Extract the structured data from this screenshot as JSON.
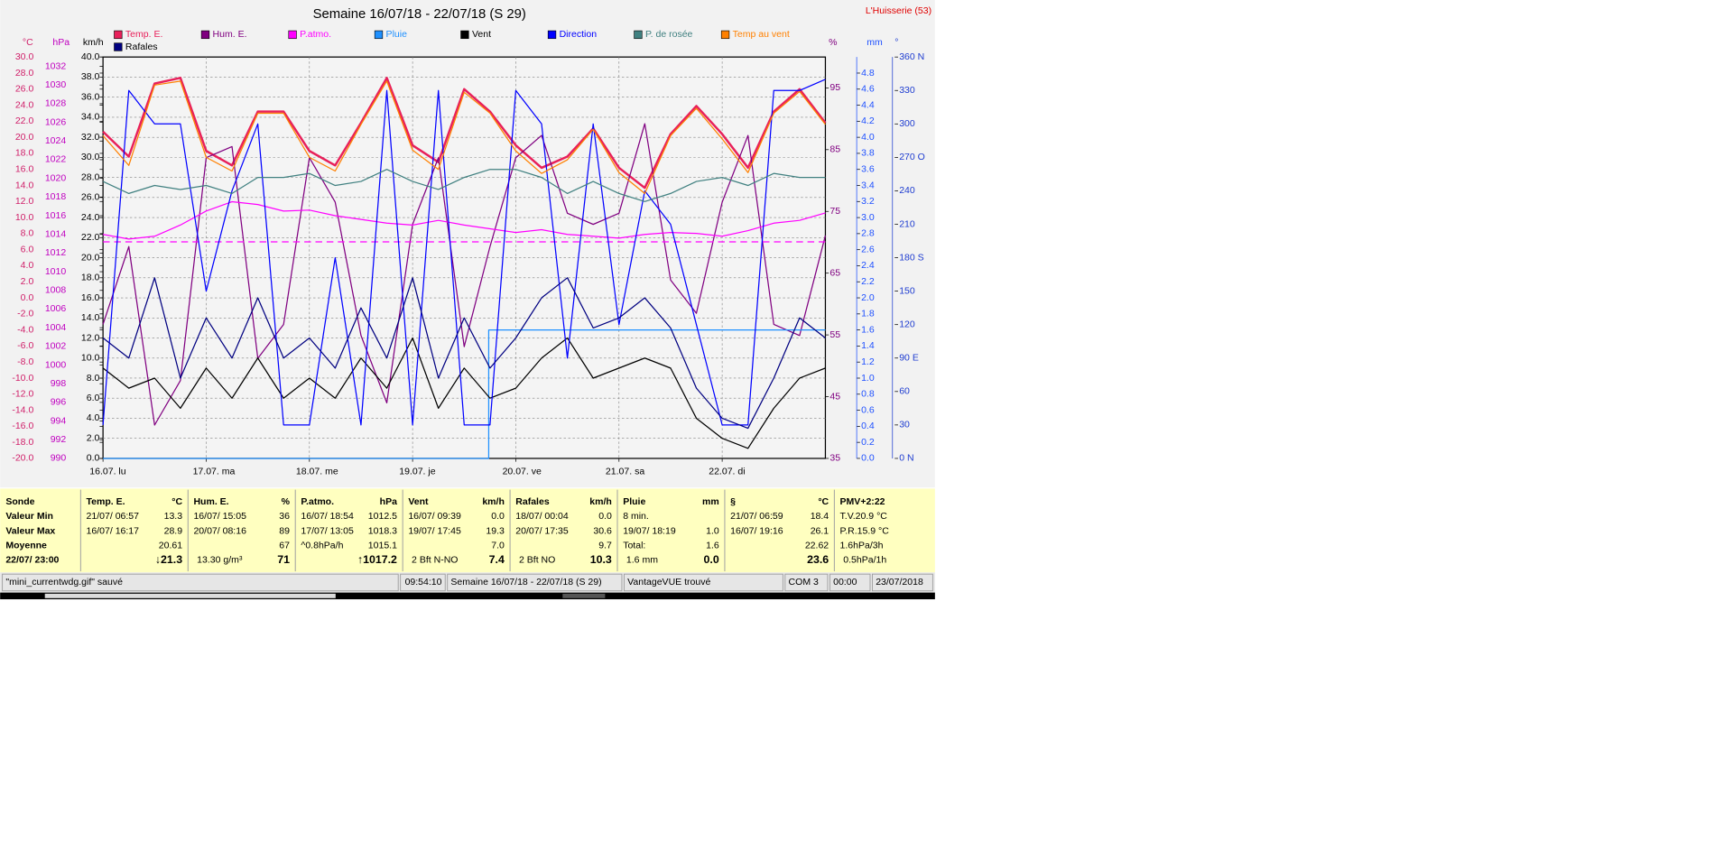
{
  "chart_data": {
    "type": "line",
    "title": "Semaine 16/07/18 - 22/07/18 (S 29)",
    "station": "L'Huisserie (53)",
    "grid": true,
    "x": [
      0,
      6,
      12,
      18,
      24,
      30,
      36,
      42,
      48,
      54,
      60,
      66,
      72,
      78,
      84,
      90,
      96,
      102,
      108,
      114,
      120,
      126,
      132,
      138,
      144,
      150,
      156,
      162,
      168
    ],
    "xlim": [
      0,
      168
    ],
    "xticks": [
      {
        "value": 0,
        "label": "16.07.  lu"
      },
      {
        "value": 24,
        "label": "17.07.  ma"
      },
      {
        "value": 48,
        "label": "18.07.  me"
      },
      {
        "value": 72,
        "label": "19.07.  je"
      },
      {
        "value": 96,
        "label": "20.07.  ve"
      },
      {
        "value": 120,
        "label": "21.07.  sa"
      },
      {
        "value": 144,
        "label": "22.07.  di"
      }
    ],
    "axes": [
      {
        "unit": "°C",
        "color": "#d0206a",
        "lim": [
          -20,
          30
        ],
        "ticks": [
          {
            "value": -20,
            "label": "-20.0"
          },
          {
            "value": -18,
            "label": "-18.0"
          },
          {
            "value": -16,
            "label": "-16.0"
          },
          {
            "value": -14,
            "label": "-14.0"
          },
          {
            "value": -12,
            "label": "-12.0"
          },
          {
            "value": -10,
            "label": "-10.0"
          },
          {
            "value": -8,
            "label": "-8.0"
          },
          {
            "value": -6,
            "label": "-6.0"
          },
          {
            "value": -4,
            "label": "-4.0"
          },
          {
            "value": -2,
            "label": "-2.0"
          },
          {
            "value": 0,
            "label": "0.0"
          },
          {
            "value": 2,
            "label": "2.0"
          },
          {
            "value": 4,
            "label": "4.0"
          },
          {
            "value": 6,
            "label": "6.0"
          },
          {
            "value": 8,
            "label": "8.0"
          },
          {
            "value": 10,
            "label": "10.0"
          },
          {
            "value": 12,
            "label": "12.0"
          },
          {
            "value": 14,
            "label": "14.0"
          },
          {
            "value": 16,
            "label": "16.0"
          },
          {
            "value": 18,
            "label": "18.0"
          },
          {
            "value": 20,
            "label": "20.0"
          },
          {
            "value": 22,
            "label": "22.0"
          },
          {
            "value": 24,
            "label": "24.0"
          },
          {
            "value": 26,
            "label": "26.0"
          },
          {
            "value": 28,
            "label": "28.0"
          },
          {
            "value": 30,
            "label": "30.0"
          }
        ]
      },
      {
        "unit": "hPa",
        "color": "#c000c0",
        "lim": [
          990,
          1033
        ],
        "ticks": [
          990,
          992,
          994,
          996,
          998,
          1000,
          1002,
          1004,
          1006,
          1008,
          1010,
          1012,
          1014,
          1016,
          1018,
          1020,
          1022,
          1024,
          1026,
          1028,
          1030,
          1032
        ]
      },
      {
        "unit": "km/h",
        "color": "#000000",
        "lim": [
          0,
          40
        ],
        "ticks": [
          {
            "value": 0,
            "label": "0.0"
          },
          {
            "value": 2,
            "label": "2.0"
          },
          {
            "value": 4,
            "label": "4.0"
          },
          {
            "value": 6,
            "label": "6.0"
          },
          {
            "value": 8,
            "label": "8.0"
          },
          {
            "value": 10,
            "label": "10.0"
          },
          {
            "value": 12,
            "label": "12.0"
          },
          {
            "value": 14,
            "label": "14.0"
          },
          {
            "value": 16,
            "label": "16.0"
          },
          {
            "value": 18,
            "label": "18.0"
          },
          {
            "value": 20,
            "label": "20.0"
          },
          {
            "value": 22,
            "label": "22.0"
          },
          {
            "value": 24,
            "label": "24.0"
          },
          {
            "value": 26,
            "label": "26.0"
          },
          {
            "value": 28,
            "label": "28.0"
          },
          {
            "value": 30,
            "label": "30.0"
          },
          {
            "value": 32,
            "label": "32.0"
          },
          {
            "value": 34,
            "label": "34.0"
          },
          {
            "value": 36,
            "label": "36.0"
          },
          {
            "value": 38,
            "label": "38.0"
          },
          {
            "value": 40,
            "label": "40.0"
          }
        ]
      },
      {
        "unit": "%",
        "color": "#800080",
        "lim": [
          35,
          100
        ],
        "ticks": [
          35,
          45,
          55,
          65,
          75,
          85,
          95
        ]
      },
      {
        "unit": "mm",
        "color": "#1e50ff",
        "lim": [
          0,
          5
        ],
        "ticks": [
          {
            "value": 0,
            "label": "0.0"
          },
          0.2,
          0.4,
          0.6,
          0.8,
          {
            "value": 1,
            "label": "1.0"
          },
          1.2,
          1.4,
          1.6,
          1.8,
          {
            "value": 2,
            "label": "2.0"
          },
          2.2,
          2.4,
          2.6,
          2.8,
          {
            "value": 3,
            "label": "3.0"
          },
          3.2,
          3.4,
          3.6,
          3.8,
          {
            "value": 4,
            "label": "4.0"
          },
          4.2,
          4.4,
          4.6,
          4.8
        ]
      },
      {
        "unit": "°",
        "color": "#1e3cd0",
        "lim": [
          0,
          360
        ],
        "ticks": [
          {
            "value": 0,
            "label": "0   N"
          },
          30,
          60,
          {
            "value": 90,
            "label": "90  E"
          },
          120,
          150,
          {
            "value": 180,
            "label": "180 S"
          },
          210,
          240,
          {
            "value": 270,
            "label": "270 O"
          },
          300,
          330,
          {
            "value": 360,
            "label": "360 N"
          }
        ]
      }
    ],
    "series": [
      {
        "name": "Temp. E.",
        "color": "#e8205a",
        "axis": 0,
        "values": [
          20.7,
          17.6,
          26.7,
          27.4,
          18.3,
          16.5,
          23.2,
          23.2,
          18.3,
          16.5,
          21.8,
          27.4,
          19.0,
          16.9,
          26.0,
          23.2,
          19.0,
          16.2,
          17.6,
          21.1,
          16.2,
          13.7,
          20.4,
          23.9,
          20.4,
          16.2,
          23.2,
          26.0,
          21.8
        ]
      },
      {
        "name": "Hum. E.",
        "color": "#800080",
        "axis": 3,
        "values": [
          56.7,
          69.3,
          40.4,
          47.6,
          83.7,
          85.5,
          51.2,
          56.7,
          83.7,
          76.5,
          54.9,
          44.0,
          72.9,
          83.7,
          53.1,
          69.3,
          83.7,
          87.3,
          74.7,
          72.9,
          74.7,
          89.2,
          63.9,
          58.5,
          76.5,
          87.3,
          56.7,
          54.9,
          71.1
        ]
      },
      {
        "name": "P.atmo.",
        "color": "#ff00ff",
        "axis": 1,
        "dashed_level": 1013.2,
        "values": [
          1014,
          1013.5,
          1013.8,
          1015,
          1016.5,
          1017.5,
          1017.2,
          1016.5,
          1016.6,
          1016,
          1015.6,
          1015.2,
          1015,
          1015.5,
          1015,
          1014.6,
          1014.2,
          1014.5,
          1014,
          1013.8,
          1013.6,
          1014,
          1014.2,
          1014.1,
          1013.8,
          1014.4,
          1015.2,
          1015.5,
          1016.3
        ]
      },
      {
        "name": "Pluie",
        "color": "#1e90ff",
        "axis": 4,
        "x": [
          0,
          89.7,
          89.7,
          168
        ],
        "values": [
          0,
          0,
          1.6,
          1.6
        ]
      },
      {
        "name": "Vent",
        "color": "#000000",
        "axis": 2,
        "values": [
          9,
          7,
          8,
          5,
          9,
          6,
          10,
          6,
          8,
          6,
          10,
          7,
          12,
          5,
          9,
          6,
          7,
          10,
          12,
          8,
          9,
          10,
          9,
          4,
          2,
          1,
          5,
          8,
          9
        ]
      },
      {
        "name": "Direction",
        "color": "#0000ff",
        "axis": 5,
        "values": [
          30,
          330,
          300,
          300,
          150,
          240,
          300,
          30,
          30,
          180,
          30,
          330,
          30,
          330,
          30,
          30,
          330,
          300,
          90,
          300,
          120,
          240,
          210,
          120,
          30,
          30,
          330,
          330,
          340
        ]
      },
      {
        "name": "P. de rosée",
        "color": "#408080",
        "axis": 0,
        "values": [
          14.5,
          13,
          14,
          13.5,
          14,
          13,
          15,
          15,
          15.5,
          14,
          14.5,
          16,
          14.5,
          13.5,
          15,
          16,
          16,
          15,
          13,
          14.5,
          13,
          12,
          13,
          14.5,
          15,
          14,
          15.5,
          15,
          15
        ]
      },
      {
        "name": "Temp au vent",
        "color": "#ff8000",
        "axis": 0,
        "values": [
          20.2,
          16.5,
          26.5,
          27.0,
          17.5,
          15.8,
          23.0,
          23.0,
          17.5,
          15.8,
          21.6,
          27.0,
          18.4,
          16.0,
          25.6,
          23.0,
          18.3,
          15.5,
          17.2,
          21.0,
          15.6,
          13.0,
          20.2,
          23.6,
          19.8,
          15.6,
          23.0,
          25.7,
          21.6
        ]
      },
      {
        "name": "Rafales",
        "color": "#000080",
        "axis": 2,
        "values": [
          12,
          10,
          18,
          8,
          14,
          10,
          16,
          10,
          12,
          9,
          15,
          10,
          18,
          8,
          14,
          9,
          12,
          16,
          18,
          13,
          14,
          16,
          13,
          7,
          4,
          3,
          8,
          14,
          12
        ]
      }
    ]
  },
  "table": {
    "columns": [
      {
        "header": "Sonde",
        "rows": [
          {
            "left": "Valeur Min"
          },
          {
            "left": "Valeur Max"
          },
          {
            "left": "Moyenne"
          },
          {
            "left": "22/07/ 23:00"
          }
        ]
      },
      {
        "header": "Temp. E.",
        "unit": "°C",
        "rows": [
          {
            "left": "21/07/ 06:57",
            "right": "13.3"
          },
          {
            "left": "16/07/ 16:17",
            "right": "28.9"
          },
          {
            "right": "20.61"
          },
          {
            "right": "↓21.3"
          }
        ]
      },
      {
        "header": "Hum. E.",
        "unit": "%",
        "rows": [
          {
            "left": "16/07/ 15:05",
            "right": "36"
          },
          {
            "left": "20/07/ 08:16",
            "right": "89"
          },
          {
            "right": "67"
          },
          {
            "left": "13.30 g/m³",
            "right": "71"
          }
        ]
      },
      {
        "header": "P.atmo.",
        "unit": "hPa",
        "rows": [
          {
            "left": "16/07/ 18:54",
            "right": "1012.5"
          },
          {
            "left": "17/07/ 13:05",
            "right": "1018.3"
          },
          {
            "left": "^0.8hPa/h",
            "right": "1015.1"
          },
          {
            "right": "↑1017.2"
          }
        ]
      },
      {
        "header": "Vent",
        "unit": "km/h",
        "rows": [
          {
            "left": "16/07/ 09:39",
            "right": "0.0"
          },
          {
            "left": "19/07/ 17:45",
            "right": "19.3"
          },
          {
            "right": "7.0"
          },
          {
            "left": "2 Bft N-NO",
            "right": "7.4"
          }
        ]
      },
      {
        "header": "Rafales",
        "unit": "km/h",
        "rows": [
          {
            "left": "18/07/ 00:04",
            "right": "0.0"
          },
          {
            "left": "20/07/ 17:35",
            "right": "30.6"
          },
          {
            "right": "9.7"
          },
          {
            "left": "2 Bft NO",
            "right": "10.3"
          }
        ]
      },
      {
        "header": "Pluie",
        "unit": "mm",
        "rows": [
          {
            "left": "8 min."
          },
          {
            "left": "19/07/ 18:19",
            "right": "1.0"
          },
          {
            "left": "Total:",
            "right": "1.6"
          },
          {
            "left": "1.6 mm",
            "right": "0.0"
          }
        ]
      },
      {
        "header": "§",
        "unit": "°C",
        "rows": [
          {
            "left": "21/07/ 06:59",
            "right": "18.4"
          },
          {
            "left": "16/07/ 19:16",
            "right": "26.1"
          },
          {
            "right": "22.62"
          },
          {
            "right": "23.6"
          }
        ]
      },
      {
        "header": "PMV+2:22",
        "rows": [
          {
            "left": "T.V.20.9 °C"
          },
          {
            "left": "P.R.15.9 °C"
          },
          {
            "left": "1.6hPa/3h"
          },
          {
            "left": "0.5hPa/1h"
          }
        ]
      }
    ]
  },
  "status_bar": [
    "\"mini_currentwdg.gif\"  sauvé",
    "09:54:10",
    "Semaine 16/07/18 - 22/07/18 (S 29)",
    "VantageVUE trouvé",
    "COM 3",
    "00:00",
    "23/07/2018"
  ]
}
